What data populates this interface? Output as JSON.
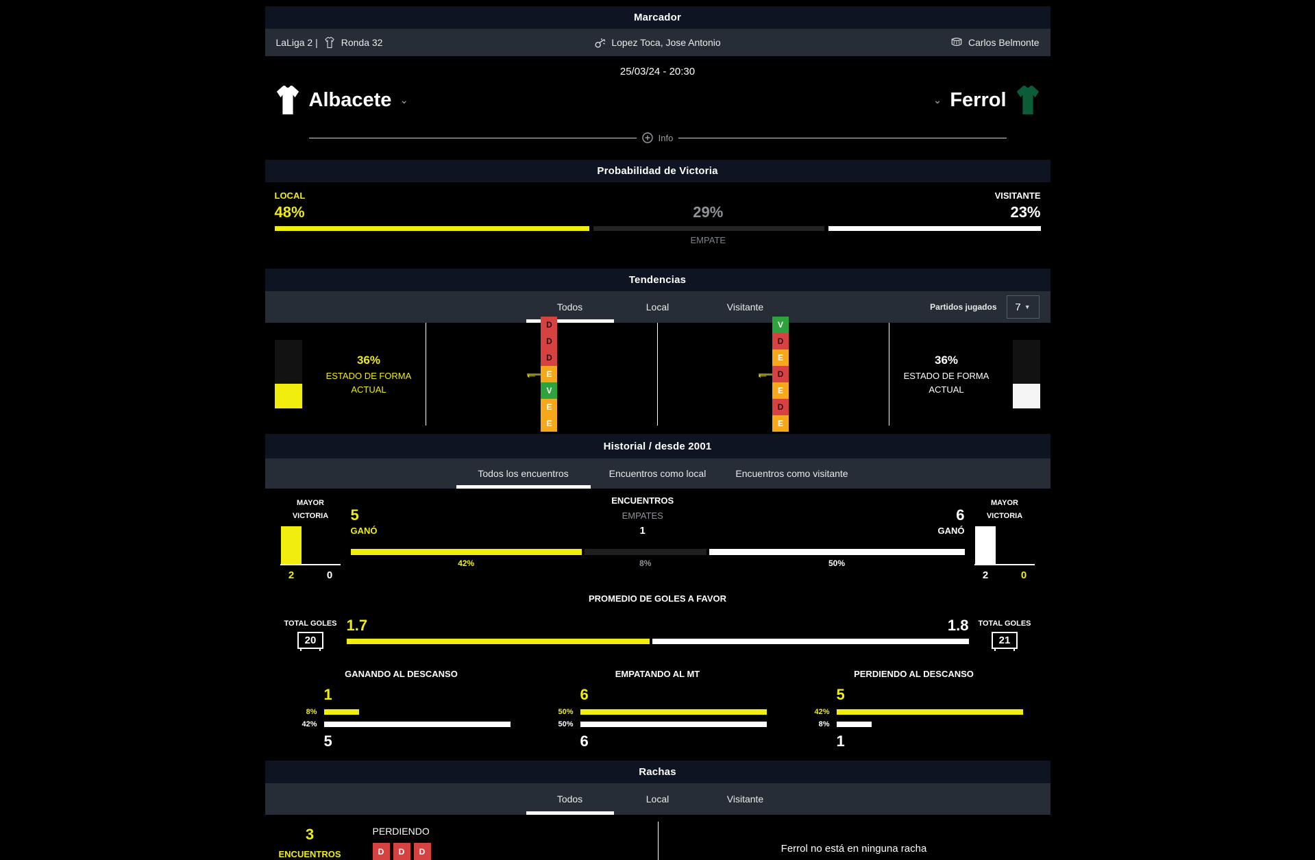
{
  "colors": {
    "accent_yellow": "#f1ee0d",
    "loss_red": "#d64242",
    "draw_orange": "#f6a81c",
    "win_green": "#2ea23c",
    "header_bg": "#0e1422",
    "tabbar_bg": "#272d36",
    "home_jersey": "#ffffff",
    "away_jersey": "#0d5c38"
  },
  "scoreboard": {
    "title": "Marcador",
    "league": "LaLiga 2 |",
    "round": "Ronda 32",
    "referee": "Lopez Toca, Jose Antonio",
    "venue": "Carlos Belmonte",
    "datetime": "25/03/24 - 20:30",
    "home_name": "Albacete",
    "away_name": "Ferrol",
    "info_label": "Info"
  },
  "probability": {
    "title": "Probabilidad de Victoria",
    "local_label": "LOCAL",
    "visitante_label": "VISITANTE",
    "empate_label": "EMPATE",
    "local_pct": "48%",
    "empate_pct": "29%",
    "visitante_pct": "23%",
    "bar_widths": {
      "local": 41.5,
      "empate": 30.5,
      "visitante": 28
    }
  },
  "tendencias": {
    "title": "Tendencias",
    "tabs": {
      "0": "Todos",
      "1": "Local",
      "2": "Visitante"
    },
    "partidos_label": "Partidos jugados",
    "partidos_value": "7",
    "dropdown_arrow": "▼",
    "home_form": {
      "pct": "36%",
      "line1": "ESTADO DE FORMA",
      "line2": "ACTUAL",
      "fill": 36,
      "sequence": [
        {
          "letter": "D",
          "result": "loss"
        },
        {
          "letter": "D",
          "result": "loss"
        },
        {
          "letter": "D",
          "result": "loss"
        },
        {
          "letter": "E",
          "result": "draw"
        },
        {
          "letter": "V",
          "result": "win"
        },
        {
          "letter": "E",
          "result": "draw"
        },
        {
          "letter": "E",
          "result": "draw"
        }
      ]
    },
    "away_form": {
      "pct": "36%",
      "line1": "ESTADO DE FORMA",
      "line2": "ACTUAL",
      "fill": 36,
      "sequence": [
        {
          "letter": "V",
          "result": "win"
        },
        {
          "letter": "D",
          "result": "loss"
        },
        {
          "letter": "E",
          "result": "draw"
        },
        {
          "letter": "D",
          "result": "loss"
        },
        {
          "letter": "E",
          "result": "draw"
        },
        {
          "letter": "D",
          "result": "loss"
        },
        {
          "letter": "E",
          "result": "draw"
        }
      ]
    }
  },
  "historial": {
    "title": "Historial / desde 2001",
    "tabs": {
      "0": "Todos los encuentros",
      "1": "Encuentros como local",
      "2": "Encuentros como visitante"
    },
    "mayor_victoria_line1": "MAYOR",
    "mayor_victoria_line2": "VICTORIA",
    "home_mayor": {
      "for": "2",
      "against": "0"
    },
    "away_mayor": {
      "for": "2",
      "against": "0"
    },
    "encuentros_label": "ENCUENTROS",
    "empates_label": "EMPATES",
    "empates_value": "1",
    "gano_label": "GANÓ",
    "home_wins": "5",
    "away_wins": "6",
    "home_win_pct": "42%",
    "empate_pct": "8%",
    "away_win_pct": "50%",
    "bar_widths": {
      "home": 38,
      "empate": 20,
      "away": 42
    },
    "promedio_label": "PROMEDIO DE GOLES A FAVOR",
    "total_goles_label": "TOTAL GOLES",
    "home_total_goals": "20",
    "away_total_goals": "21",
    "home_avg": "1.7",
    "away_avg": "1.8",
    "avg_widths": {
      "home": 49,
      "away": 51
    },
    "halftime": {
      "0": {
        "title": "GANANDO AL DESCANSO",
        "home_value": "1",
        "away_value": "5",
        "home_pct": "8%",
        "away_pct": "42%",
        "home_width": 19,
        "away_width": 100
      },
      "1": {
        "title": "EMPATANDO AL MT",
        "home_value": "6",
        "away_value": "6",
        "home_pct": "50%",
        "away_pct": "50%",
        "home_width": 100,
        "away_width": 100
      },
      "2": {
        "title": "PERDIENDO AL DESCANSO",
        "home_value": "5",
        "away_value": "1",
        "home_pct": "42%",
        "away_pct": "8%",
        "home_width": 100,
        "away_width": 19
      }
    }
  },
  "rachas": {
    "title": "Rachas",
    "tabs": {
      "0": "Todos",
      "1": "Local",
      "2": "Visitante"
    },
    "streak_count": "3",
    "streak_count_label": "ENCUENTROS",
    "streak_type": "PERDIENDO",
    "sequence": [
      {
        "letter": "D",
        "result": "loss"
      },
      {
        "letter": "D",
        "result": "loss"
      },
      {
        "letter": "D",
        "result": "loss"
      }
    ],
    "away_message": "Ferrol no está en ninguna racha"
  }
}
